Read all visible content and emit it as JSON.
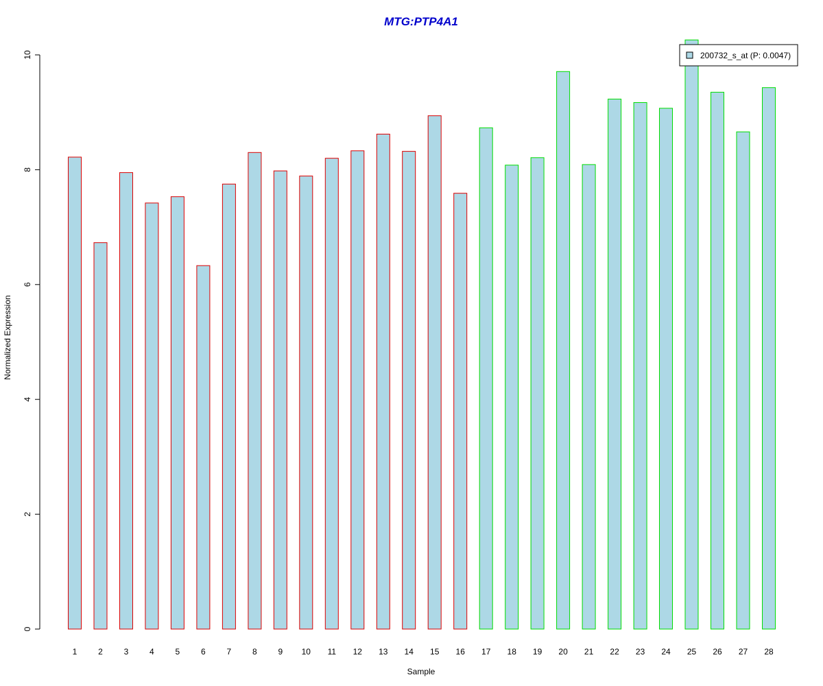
{
  "chart_data": {
    "type": "bar",
    "title": "MTG:PTP4A1",
    "xlabel": "Sample",
    "ylabel": "Normalized Expression",
    "categories": [
      "1",
      "2",
      "3",
      "4",
      "5",
      "6",
      "7",
      "8",
      "9",
      "10",
      "11",
      "12",
      "13",
      "14",
      "15",
      "16",
      "17",
      "18",
      "19",
      "20",
      "21",
      "22",
      "23",
      "24",
      "25",
      "26",
      "27",
      "28"
    ],
    "series": [
      {
        "name": "200732_s_at (P: 0.0047)",
        "values": [
          8.22,
          6.73,
          7.95,
          7.42,
          7.53,
          6.33,
          7.75,
          8.3,
          7.98,
          7.89,
          8.2,
          8.33,
          8.62,
          8.32,
          8.94,
          7.59,
          8.73,
          8.08,
          8.21,
          9.71,
          8.09,
          9.23,
          9.17,
          9.07,
          10.26,
          9.35,
          8.66,
          9.43
        ]
      }
    ],
    "ylim": [
      0,
      10
    ],
    "yticks": [
      "0",
      "2",
      "4",
      "6",
      "8",
      "10"
    ],
    "grid": false,
    "legend_position": "top-right",
    "group_sizes": [
      16,
      12
    ],
    "colors": {
      "title": "#0000cc",
      "bar_fill": "#add8e6",
      "group_edge": [
        "#dd0000",
        "#00dd00"
      ],
      "axis": "#000000"
    }
  }
}
